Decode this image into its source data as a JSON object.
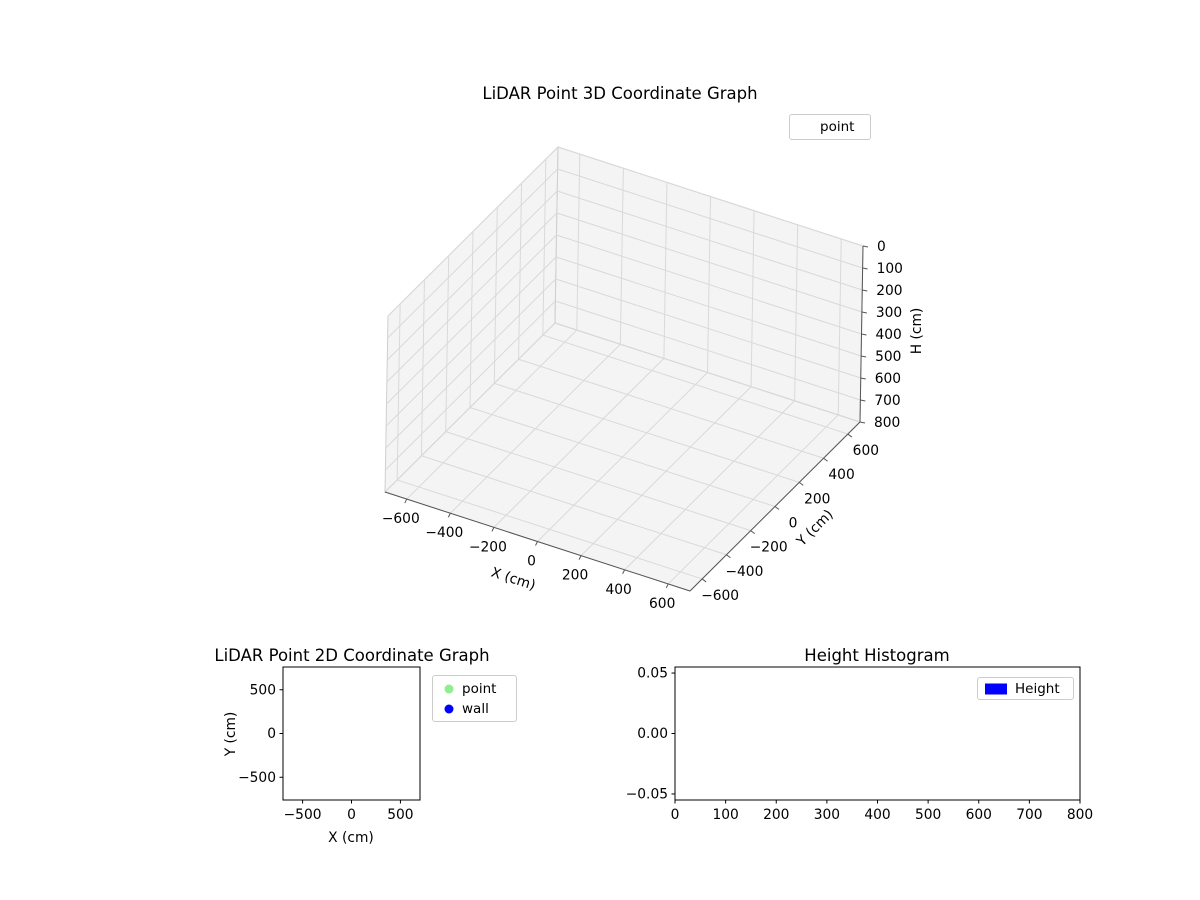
{
  "figure": {
    "background": "#ffffff"
  },
  "chart_data": [
    {
      "type": "scatter3d",
      "title": "LiDAR Point 3D Coordinate Graph",
      "xlabel": "X (cm)",
      "ylabel": "Y (cm)",
      "zlabel": "H (cm)",
      "xlim": [
        -700,
        700
      ],
      "ylim": [
        -700,
        700
      ],
      "zlim": [
        0,
        800
      ],
      "z_inverted": true,
      "grid": true,
      "xticks": {
        "values": [
          -600,
          -400,
          -200,
          0,
          200,
          400,
          600
        ],
        "labels": [
          "−600",
          "−400",
          "−200",
          "0",
          "200",
          "400",
          "600"
        ]
      },
      "yticks": {
        "values": [
          -600,
          -400,
          -200,
          0,
          200,
          400,
          600
        ],
        "labels": [
          "−600",
          "−400",
          "−200",
          "0",
          "200",
          "400",
          "600"
        ]
      },
      "zticks": {
        "values": [
          0,
          100,
          200,
          300,
          400,
          500,
          600,
          700,
          800
        ],
        "labels": [
          "0",
          "100",
          "200",
          "300",
          "400",
          "500",
          "600",
          "700",
          "800"
        ]
      },
      "legend": [
        {
          "label": "point",
          "marker": "none"
        }
      ],
      "legend_loc": "upper right (outside top)",
      "series": [
        {
          "name": "point",
          "x": [],
          "y": [],
          "z": []
        }
      ]
    },
    {
      "type": "scatter",
      "title": "LiDAR Point 2D Coordinate Graph",
      "xlabel": "X (cm)",
      "ylabel": "Y (cm)",
      "xlim": [
        -700,
        700
      ],
      "ylim": [
        -760,
        760
      ],
      "grid": false,
      "xticks": {
        "values": [
          -500,
          0,
          500
        ],
        "labels": [
          "−500",
          "0",
          "500"
        ]
      },
      "yticks": {
        "values": [
          -500,
          0,
          500
        ],
        "labels": [
          "−500",
          "0",
          "500"
        ]
      },
      "legend": [
        {
          "label": "point",
          "marker": "circle",
          "color": "#90ee90"
        },
        {
          "label": "wall",
          "marker": "circle",
          "color": "#0000ff"
        }
      ],
      "legend_loc": "outside right of axes",
      "series": [
        {
          "name": "point",
          "color": "#90ee90",
          "points": []
        },
        {
          "name": "wall",
          "color": "#0000ff",
          "points": []
        }
      ]
    },
    {
      "type": "histogram",
      "title": "Height Histogram",
      "xlabel": "",
      "ylabel": "",
      "xlim": [
        0,
        800
      ],
      "ylim": [
        -0.055,
        0.055
      ],
      "grid": false,
      "xticks": {
        "values": [
          0,
          100,
          200,
          300,
          400,
          500,
          600,
          700,
          800
        ],
        "labels": [
          "0",
          "100",
          "200",
          "300",
          "400",
          "500",
          "600",
          "700",
          "800"
        ]
      },
      "yticks": {
        "values": [
          -0.05,
          0,
          0.05
        ],
        "labels": [
          "−0.05",
          "0.00",
          "0.05"
        ]
      },
      "legend": [
        {
          "label": "Height",
          "marker": "rect",
          "color": "#0000ff"
        }
      ],
      "legend_loc": "upper right (inside)",
      "values": []
    }
  ],
  "colors": {
    "pane_fill": "#e9e9e9",
    "grid_line": "#d9d9d9",
    "axis_line_3d": "#555555",
    "axis_line_2d": "#000000"
  }
}
